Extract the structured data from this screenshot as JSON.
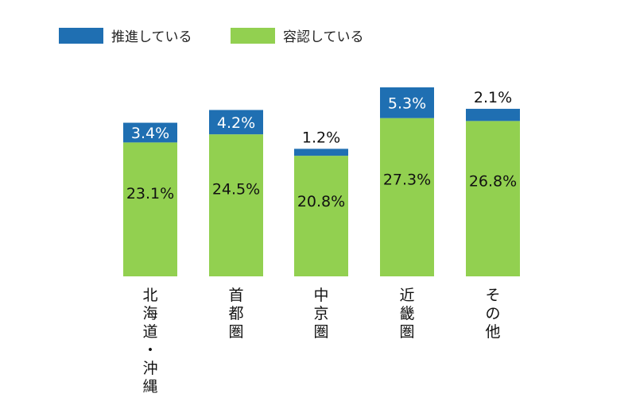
{
  "chart_data": {
    "type": "bar",
    "stacked": true,
    "title": "",
    "xlabel": "",
    "ylabel": "",
    "ylim": [
      0,
      35
    ],
    "grid": false,
    "legend_position": "top-left",
    "categories": [
      "北海道・沖縄",
      "首都圏",
      "中京圏",
      "近畿圏",
      "その他"
    ],
    "series": [
      {
        "name": "容認している",
        "color": "#92d050",
        "values": [
          23.1,
          24.5,
          20.8,
          27.3,
          26.8
        ],
        "labels": [
          "23.1%",
          "24.5%",
          "20.8%",
          "27.3%",
          "26.8%"
        ]
      },
      {
        "name": "推進している",
        "color": "#1f6fb2",
        "values": [
          3.4,
          4.2,
          1.2,
          5.3,
          2.1
        ],
        "labels": [
          "3.4%",
          "4.2%",
          "1.2%",
          "5.3%",
          "2.1%"
        ]
      }
    ]
  }
}
